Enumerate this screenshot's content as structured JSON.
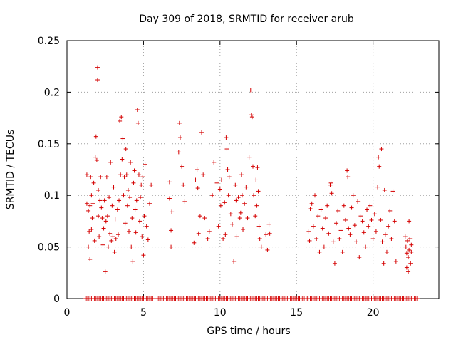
{
  "chart_data": {
    "type": "scatter",
    "title": "Day 309 of 2018, SRMTID for receiver arub",
    "xlabel": "GPS time / hours",
    "ylabel": "SRMTID / TECUs",
    "xlim": [
      0,
      24.3
    ],
    "ylim": [
      0,
      0.25
    ],
    "xticks": [
      0,
      5,
      10,
      15,
      20
    ],
    "xtick_labels": [
      "0",
      "5",
      "10",
      "15",
      "20"
    ],
    "yticks": [
      0,
      0.05,
      0.1,
      0.15,
      0.2,
      0.25
    ],
    "ytick_labels": [
      "0",
      "0.05",
      "0.1",
      "0.15",
      "0.2",
      "0.25"
    ],
    "grid": true,
    "marker": "+",
    "color": "#d40000",
    "series": [
      {
        "name": "SRMTID",
        "points": [
          [
            1.3,
            0.092
          ],
          [
            1.3,
            0.12
          ],
          [
            1.4,
            0.05
          ],
          [
            1.4,
            0.085
          ],
          [
            1.45,
            0.065
          ],
          [
            1.5,
            0.038
          ],
          [
            1.5,
            0.09
          ],
          [
            1.55,
            0.118
          ],
          [
            1.6,
            0.067
          ],
          [
            1.6,
            0.1
          ],
          [
            1.65,
            0.078
          ],
          [
            1.7,
            0.092
          ],
          [
            1.75,
            0.112
          ],
          [
            1.8,
            0.056
          ],
          [
            1.85,
            0.137
          ],
          [
            1.9,
            0.157
          ],
          [
            1.95,
            0.134
          ],
          [
            2.0,
            0.224
          ],
          [
            2.0,
            0.212
          ],
          [
            2.05,
            0.105
          ],
          [
            2.05,
            0.08
          ],
          [
            2.1,
            0.06
          ],
          [
            2.15,
            0.095
          ],
          [
            2.2,
            0.118
          ],
          [
            2.25,
            0.088
          ],
          [
            2.3,
            0.078
          ],
          [
            2.35,
            0.052
          ],
          [
            2.4,
            0.068
          ],
          [
            2.45,
            0.095
          ],
          [
            2.5,
            0.026
          ],
          [
            2.55,
            0.075
          ],
          [
            2.6,
            0.118
          ],
          [
            2.65,
            0.08
          ],
          [
            2.7,
            0.05
          ],
          [
            2.75,
            0.098
          ],
          [
            2.8,
            0.063
          ],
          [
            2.85,
            0.132
          ],
          [
            2.9,
            0.056
          ],
          [
            2.95,
            0.09
          ],
          [
            3.0,
            0.06
          ],
          [
            3.05,
            0.108
          ],
          [
            3.1,
            0.045
          ],
          [
            3.15,
            0.077
          ],
          [
            3.2,
            0.058
          ],
          [
            3.3,
            0.086
          ],
          [
            3.35,
            0.062
          ],
          [
            3.4,
            0.095
          ],
          [
            3.45,
            0.172
          ],
          [
            3.5,
            0.12
          ],
          [
            3.55,
            0.176
          ],
          [
            3.6,
            0.135
          ],
          [
            3.65,
            0.155
          ],
          [
            3.7,
            0.1
          ],
          [
            3.75,
            0.118
          ],
          [
            3.8,
            0.073
          ],
          [
            3.85,
            0.145
          ],
          [
            3.9,
            0.12
          ],
          [
            3.95,
            0.09
          ],
          [
            4.0,
            0.105
          ],
          [
            4.05,
            0.065
          ],
          [
            4.1,
            0.098
          ],
          [
            4.15,
            0.132
          ],
          [
            4.2,
            0.05
          ],
          [
            4.25,
            0.078
          ],
          [
            4.3,
            0.036
          ],
          [
            4.35,
            0.112
          ],
          [
            4.4,
            0.124
          ],
          [
            4.45,
            0.086
          ],
          [
            4.5,
            0.064
          ],
          [
            4.55,
            0.095
          ],
          [
            4.6,
            0.183
          ],
          [
            4.65,
            0.17
          ],
          [
            4.7,
            0.12
          ],
          [
            4.75,
            0.075
          ],
          [
            4.8,
            0.098
          ],
          [
            4.85,
            0.11
          ],
          [
            4.9,
            0.06
          ],
          [
            4.95,
            0.118
          ],
          [
            5.0,
            0.042
          ],
          [
            5.05,
            0.08
          ],
          [
            5.1,
            0.13
          ],
          [
            5.2,
            0.07
          ],
          [
            5.3,
            0.057
          ],
          [
            5.4,
            0.092
          ],
          [
            5.5,
            0.11
          ],
          [
            6.7,
            0.113
          ],
          [
            6.7,
            0.097
          ],
          [
            6.8,
            0.05
          ],
          [
            6.8,
            0.066
          ],
          [
            6.85,
            0.084
          ],
          [
            7.3,
            0.142
          ],
          [
            7.35,
            0.17
          ],
          [
            7.4,
            0.156
          ],
          [
            7.5,
            0.128
          ],
          [
            7.6,
            0.11
          ],
          [
            7.7,
            0.094
          ],
          [
            8.3,
            0.054
          ],
          [
            8.4,
            0.115
          ],
          [
            8.5,
            0.125
          ],
          [
            8.55,
            0.107
          ],
          [
            8.6,
            0.063
          ],
          [
            8.7,
            0.08
          ],
          [
            8.8,
            0.161
          ],
          [
            8.9,
            0.12
          ],
          [
            9.0,
            0.078
          ],
          [
            9.2,
            0.058
          ],
          [
            9.3,
            0.065
          ],
          [
            9.5,
            0.1
          ],
          [
            9.6,
            0.132
          ],
          [
            9.8,
            0.112
          ],
          [
            9.9,
            0.07
          ],
          [
            10.0,
            0.106
          ],
          [
            10.05,
            0.09
          ],
          [
            10.1,
            0.115
          ],
          [
            10.2,
            0.058
          ],
          [
            10.3,
            0.093
          ],
          [
            10.35,
            0.062
          ],
          [
            10.4,
            0.156
          ],
          [
            10.45,
            0.145
          ],
          [
            10.5,
            0.125
          ],
          [
            10.55,
            0.1
          ],
          [
            10.6,
            0.118
          ],
          [
            10.7,
            0.082
          ],
          [
            10.8,
            0.072
          ],
          [
            10.9,
            0.036
          ],
          [
            11.0,
            0.11
          ],
          [
            11.05,
            0.095
          ],
          [
            11.1,
            0.06
          ],
          [
            11.2,
            0.098
          ],
          [
            11.3,
            0.078
          ],
          [
            11.35,
            0.083
          ],
          [
            11.4,
            0.12
          ],
          [
            11.45,
            0.1
          ],
          [
            11.5,
            0.067
          ],
          [
            11.6,
            0.092
          ],
          [
            11.7,
            0.108
          ],
          [
            11.8,
            0.078
          ],
          [
            11.9,
            0.137
          ],
          [
            12.0,
            0.202
          ],
          [
            12.05,
            0.178
          ],
          [
            12.1,
            0.176
          ],
          [
            12.15,
            0.128
          ],
          [
            12.2,
            0.1
          ],
          [
            12.3,
            0.08
          ],
          [
            12.35,
            0.115
          ],
          [
            12.4,
            0.09
          ],
          [
            12.45,
            0.127
          ],
          [
            12.5,
            0.104
          ],
          [
            12.55,
            0.07
          ],
          [
            12.6,
            0.058
          ],
          [
            12.7,
            0.05
          ],
          [
            13.0,
            0.062
          ],
          [
            13.1,
            0.047
          ],
          [
            13.2,
            0.072
          ],
          [
            13.25,
            0.063
          ],
          [
            15.8,
            0.065
          ],
          [
            15.85,
            0.056
          ],
          [
            15.9,
            0.087
          ],
          [
            16.0,
            0.092
          ],
          [
            16.1,
            0.07
          ],
          [
            16.2,
            0.1
          ],
          [
            16.3,
            0.058
          ],
          [
            16.4,
            0.08
          ],
          [
            16.5,
            0.045
          ],
          [
            16.6,
            0.086
          ],
          [
            16.7,
            0.068
          ],
          [
            16.8,
            0.05
          ],
          [
            16.9,
            0.078
          ],
          [
            17.0,
            0.09
          ],
          [
            17.1,
            0.063
          ],
          [
            17.2,
            0.11
          ],
          [
            17.25,
            0.112
          ],
          [
            17.3,
            0.102
          ],
          [
            17.4,
            0.055
          ],
          [
            17.5,
            0.034
          ],
          [
            17.6,
            0.073
          ],
          [
            17.7,
            0.085
          ],
          [
            17.8,
            0.058
          ],
          [
            17.9,
            0.066
          ],
          [
            18.0,
            0.045
          ],
          [
            18.1,
            0.09
          ],
          [
            18.2,
            0.076
          ],
          [
            18.3,
            0.124
          ],
          [
            18.35,
            0.118
          ],
          [
            18.4,
            0.068
          ],
          [
            18.5,
            0.062
          ],
          [
            18.6,
            0.088
          ],
          [
            18.7,
            0.1
          ],
          [
            18.8,
            0.071
          ],
          [
            18.9,
            0.055
          ],
          [
            19.0,
            0.094
          ],
          [
            19.1,
            0.04
          ],
          [
            19.2,
            0.08
          ],
          [
            19.3,
            0.075
          ],
          [
            19.4,
            0.064
          ],
          [
            19.5,
            0.05
          ],
          [
            19.6,
            0.086
          ],
          [
            19.7,
            0.07
          ],
          [
            19.8,
            0.09
          ],
          [
            19.9,
            0.076
          ],
          [
            20.0,
            0.058
          ],
          [
            20.1,
            0.082
          ],
          [
            20.2,
            0.065
          ],
          [
            20.3,
            0.108
          ],
          [
            20.35,
            0.137
          ],
          [
            20.4,
            0.128
          ],
          [
            20.5,
            0.076
          ],
          [
            20.55,
            0.145
          ],
          [
            20.6,
            0.055
          ],
          [
            20.7,
            0.034
          ],
          [
            20.75,
            0.105
          ],
          [
            20.8,
            0.062
          ],
          [
            20.9,
            0.045
          ],
          [
            21.0,
            0.07
          ],
          [
            21.1,
            0.085
          ],
          [
            21.2,
            0.058
          ],
          [
            21.3,
            0.104
          ],
          [
            21.4,
            0.075
          ],
          [
            21.5,
            0.036
          ],
          [
            22.1,
            0.06
          ],
          [
            22.15,
            0.05
          ],
          [
            22.2,
            0.044
          ],
          [
            22.2,
            0.03
          ],
          [
            22.25,
            0.056
          ],
          [
            22.3,
            0.026
          ],
          [
            22.3,
            0.04
          ],
          [
            22.35,
            0.075
          ],
          [
            22.35,
            0.047
          ],
          [
            22.4,
            0.058
          ],
          [
            22.45,
            0.034
          ],
          [
            22.5,
            0.052
          ],
          [
            22.5,
            0.045
          ]
        ],
        "zero_ranges": [
          [
            1.2,
            5.6
          ],
          [
            5.9,
            12.6
          ],
          [
            12.7,
            15.5
          ],
          [
            15.7,
            22.3
          ],
          [
            22.4,
            22.9
          ]
        ]
      }
    ]
  }
}
